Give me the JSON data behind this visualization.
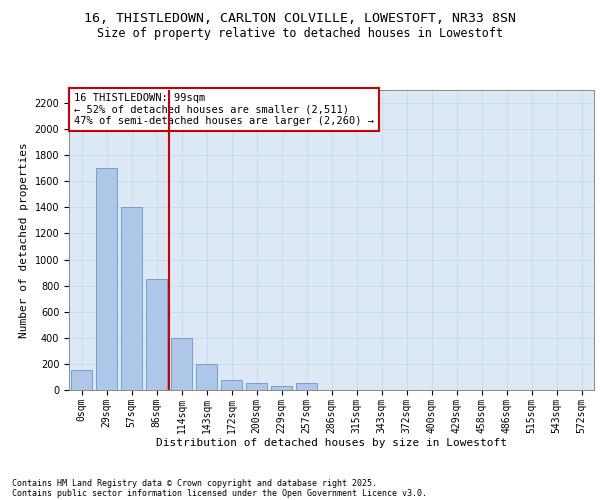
{
  "title_line1": "16, THISTLEDOWN, CARLTON COLVILLE, LOWESTOFT, NR33 8SN",
  "title_line2": "Size of property relative to detached houses in Lowestoft",
  "xlabel": "Distribution of detached houses by size in Lowestoft",
  "ylabel": "Number of detached properties",
  "categories": [
    "0sqm",
    "29sqm",
    "57sqm",
    "86sqm",
    "114sqm",
    "143sqm",
    "172sqm",
    "200sqm",
    "229sqm",
    "257sqm",
    "286sqm",
    "315sqm",
    "343sqm",
    "372sqm",
    "400sqm",
    "429sqm",
    "458sqm",
    "486sqm",
    "515sqm",
    "543sqm",
    "572sqm"
  ],
  "values": [
    150,
    1700,
    1400,
    850,
    400,
    200,
    80,
    50,
    30,
    50,
    0,
    0,
    0,
    0,
    0,
    0,
    0,
    0,
    0,
    0,
    0
  ],
  "bar_color": "#aec6e8",
  "bar_edge_color": "#6699cc",
  "vline_x": 3.5,
  "vline_color": "#cc0000",
  "annotation_text": "16 THISTLEDOWN: 99sqm\n← 52% of detached houses are smaller (2,511)\n47% of semi-detached houses are larger (2,260) →",
  "annotation_box_color": "#ffffff",
  "annotation_box_edge": "#cc0000",
  "ylim": [
    0,
    2300
  ],
  "yticks": [
    0,
    200,
    400,
    600,
    800,
    1000,
    1200,
    1400,
    1600,
    1800,
    2000,
    2200
  ],
  "grid_color": "#c0d4e8",
  "bg_color": "#dce9f5",
  "footer_line1": "Contains HM Land Registry data © Crown copyright and database right 2025.",
  "footer_line2": "Contains public sector information licensed under the Open Government Licence v3.0.",
  "title_fontsize": 9.5,
  "subtitle_fontsize": 8.5,
  "axis_label_fontsize": 8,
  "tick_fontsize": 7,
  "annotation_fontsize": 7.5,
  "footer_fontsize": 6
}
